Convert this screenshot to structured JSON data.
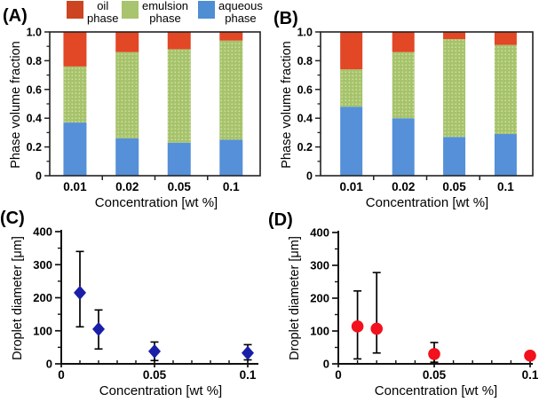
{
  "legend": {
    "items": [
      {
        "line1": "oil",
        "line2": "phase",
        "color": "#cc4420",
        "name": "oil phase"
      },
      {
        "line1": "emulsion",
        "line2": "phase",
        "color": "#a8c46e",
        "name": "emulsion phase"
      },
      {
        "line1": "aqueous",
        "line2": "phase",
        "color": "#4f8ed3",
        "name": "aqueous phase"
      }
    ]
  },
  "chart_data": [
    {
      "panel_label": "(A)",
      "type": "bar",
      "stacked": true,
      "categories": [
        "0.01",
        "0.02",
        "0.05",
        "0.1"
      ],
      "series": [
        {
          "name": "aqueous phase",
          "color": "#5590d9",
          "values": [
            0.37,
            0.26,
            0.23,
            0.25
          ]
        },
        {
          "name": "emulsion phase",
          "color": "#a6c36c",
          "texture": "dots",
          "values": [
            0.39,
            0.6,
            0.65,
            0.69
          ]
        },
        {
          "name": "oil phase",
          "color": "#e24726",
          "values": [
            0.24,
            0.14,
            0.12,
            0.06
          ]
        }
      ],
      "xlabel": "Concentration [wt %]",
      "ylabel": "Phase volume fraction",
      "ylim": [
        0,
        1
      ],
      "yticks": {
        "values": [
          0,
          0.2,
          0.4,
          0.6,
          0.8,
          1.0
        ],
        "labels": [
          "0",
          "0.2",
          "0.4",
          "0.6",
          "0.8",
          "1.0"
        ],
        "minor_step": 0.1
      }
    },
    {
      "panel_label": "(B)",
      "type": "bar",
      "stacked": true,
      "categories": [
        "0.01",
        "0.02",
        "0.05",
        "0.1"
      ],
      "series": [
        {
          "name": "aqueous phase",
          "color": "#5590d9",
          "values": [
            0.48,
            0.4,
            0.27,
            0.29
          ]
        },
        {
          "name": "emulsion phase",
          "color": "#a6c36c",
          "texture": "dots",
          "values": [
            0.26,
            0.46,
            0.68,
            0.62
          ]
        },
        {
          "name": "oil phase",
          "color": "#e24726",
          "values": [
            0.26,
            0.14,
            0.05,
            0.09
          ]
        }
      ],
      "xlabel": "Concentration [wt %]",
      "ylabel": "Phase volume fraction",
      "ylim": [
        0,
        1
      ],
      "yticks": {
        "values": [
          0,
          0.2,
          0.4,
          0.6,
          0.8,
          1.0
        ],
        "labels": [
          "0",
          "0.2",
          "0.4",
          "0.6",
          "0.8",
          "1.0"
        ],
        "minor_step": 0.1
      }
    },
    {
      "panel_label": "(C)",
      "type": "scatter",
      "marker": "diamond",
      "marker_color": "#1a1fa8",
      "points": [
        {
          "x": 0.01,
          "y": 215,
          "err_low": 112,
          "err_high": 340
        },
        {
          "x": 0.02,
          "y": 105,
          "err_low": 45,
          "err_high": 163
        },
        {
          "x": 0.05,
          "y": 38,
          "err_low": 10,
          "err_high": 66
        },
        {
          "x": 0.1,
          "y": 33,
          "err_low": 12,
          "err_high": 58
        }
      ],
      "xlabel": "Concentration [wt %]",
      "ylabel": "Droplet diameter [μm]",
      "xlim": [
        0,
        0.1
      ],
      "ylim": [
        0,
        400
      ],
      "xticks": {
        "values": [
          0,
          0.05,
          0.1
        ],
        "labels": [
          "0",
          "0.05",
          "0.1"
        ],
        "minor_step": 0.01
      },
      "yticks": {
        "values": [
          0,
          100,
          200,
          300,
          400
        ],
        "labels": [
          "0",
          "100",
          "200",
          "300",
          "400"
        ],
        "minor_step": 50
      }
    },
    {
      "panel_label": "(D)",
      "type": "scatter",
      "marker": "circle",
      "marker_color": "#f2111c",
      "points": [
        {
          "x": 0.01,
          "y": 114,
          "err_low": 15,
          "err_high": 222
        },
        {
          "x": 0.02,
          "y": 107,
          "err_low": 33,
          "err_high": 278
        },
        {
          "x": 0.05,
          "y": 30,
          "err_low": 5,
          "err_high": 65
        },
        {
          "x": 0.1,
          "y": 25,
          "err_low": null,
          "err_high": null
        }
      ],
      "xlabel": "Concentration [wt %]",
      "ylabel": "Droplet diameter [μm]",
      "xlim": [
        0,
        0.1
      ],
      "ylim": [
        0,
        400
      ],
      "xticks": {
        "values": [
          0,
          0.05,
          0.1
        ],
        "labels": [
          "0",
          "0.05",
          "0.1"
        ],
        "minor_step": 0.01
      },
      "yticks": {
        "values": [
          0,
          100,
          200,
          300,
          400
        ],
        "labels": [
          "0",
          "100",
          "200",
          "300",
          "400"
        ],
        "minor_step": 50
      }
    }
  ]
}
